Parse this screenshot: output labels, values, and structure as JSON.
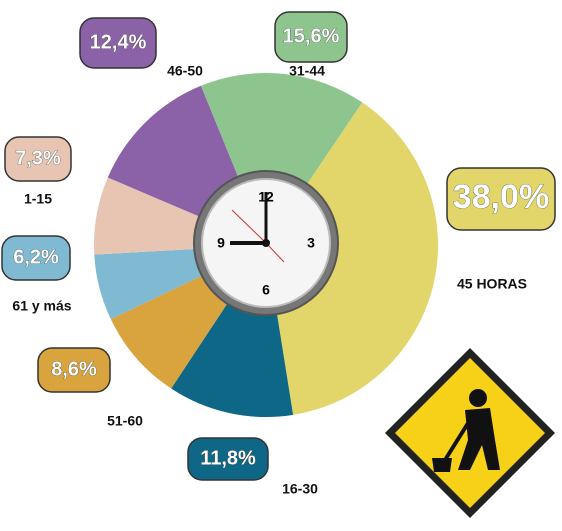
{
  "chart_data": {
    "type": "pie",
    "categories": [
      "45 HORAS",
      "16-30",
      "51-60",
      "61 y más",
      "1-15",
      "46-50",
      "31-44"
    ],
    "values": [
      38.0,
      11.8,
      8.6,
      6.2,
      7.3,
      12.4,
      15.6
    ],
    "value_labels": [
      "38,0%",
      "11,8%",
      "8,6%",
      "6,2%",
      "7,3%",
      "12,4%",
      "15,6%"
    ],
    "colors": [
      "#e2d66a",
      "#0f6787",
      "#d9a33e",
      "#7fbad2",
      "#e8c5b3",
      "#8b62a8",
      "#8ec58e"
    ]
  }
}
